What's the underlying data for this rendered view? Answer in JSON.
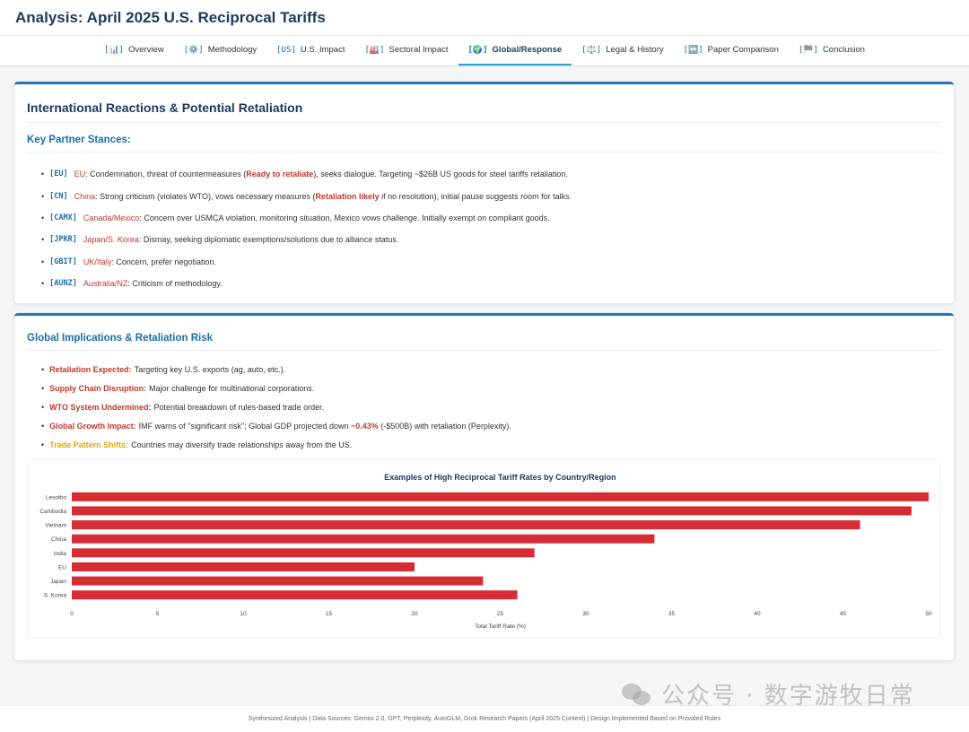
{
  "header": {
    "title": "Analysis: April 2025 U.S. Reciprocal Tariffs"
  },
  "nav": {
    "tabs": [
      {
        "label": "Overview",
        "icon": "[📊]",
        "icon_name": "bar-chart-icon",
        "active": false
      },
      {
        "label": "Methodology",
        "icon": "[⚙️]",
        "icon_name": "gear-icon",
        "active": false
      },
      {
        "label": "U.S. Impact",
        "icon": "[US]",
        "icon_name": "us-icon",
        "active": false
      },
      {
        "label": "Sectoral Impact",
        "icon": "[🏭]",
        "icon_name": "factory-icon",
        "active": false
      },
      {
        "label": "Global/Response",
        "icon": "[🌍]",
        "icon_name": "globe-icon",
        "active": true
      },
      {
        "label": "Legal & History",
        "icon": "[⚖️]",
        "icon_name": "scales-icon",
        "active": false
      },
      {
        "label": "Paper Comparison",
        "icon": "[↔️]",
        "icon_name": "compare-arrows-icon",
        "active": false
      },
      {
        "label": "Conclusion",
        "icon": "[🏁]",
        "icon_name": "checkered-flag-icon",
        "active": false
      }
    ]
  },
  "reactions": {
    "title": "International Reactions & Potential Retaliation",
    "subtitle": "Key Partner Stances:",
    "items": [
      {
        "code": "[EU]",
        "name": "EU",
        "text_before": ": Condemnation, threat of countermeasures (",
        "highlight": "Ready to retaliate",
        "text_after": "), seeks dialogue. Targeting ~$26B US goods for steel tariffs retaliation."
      },
      {
        "code": "[CN]",
        "name": "China",
        "text_before": ": Strong criticism (violates WTO), vows necessary measures (",
        "highlight": "Retaliation likely",
        "text_after": " if no resolution), initial pause suggests room for talks."
      },
      {
        "code": "[CAMX]",
        "name": "Canada/Mexico",
        "text_before": ": Concern over USMCA violation, monitoring situation, Mexico vows challenge. Initially exempt on compliant goods.",
        "highlight": "",
        "text_after": ""
      },
      {
        "code": "[JPKR]",
        "name": "Japan/S. Korea",
        "text_before": ": Dismay, seeking diplomatic exemptions/solutions due to alliance status.",
        "highlight": "",
        "text_after": ""
      },
      {
        "code": "[GBIT]",
        "name": "UK/Italy",
        "text_before": ": Concern, prefer negotiation.",
        "highlight": "",
        "text_after": ""
      },
      {
        "code": "[AUNZ]",
        "name": "Australia/NZ",
        "text_before": ": Criticism of methodology.",
        "highlight": "",
        "text_after": ""
      }
    ]
  },
  "implications": {
    "title": "Global Implications & Retaliation Risk",
    "items": [
      {
        "label": "Retaliation Expected:",
        "text": "Targeting key U.S. exports (ag, auto, etc.).",
        "color": "#c0392b",
        "extra_highlight": "",
        "extra_text": ""
      },
      {
        "label": "Supply Chain Disruption:",
        "text": "Major challenge for multinational corporations.",
        "color": "#c0392b",
        "extra_highlight": "",
        "extra_text": ""
      },
      {
        "label": "WTO System Undermined:",
        "text": "Potential breakdown of rules-based trade order.",
        "color": "#c0392b",
        "extra_highlight": "",
        "extra_text": ""
      },
      {
        "label": "Global Growth Impact:",
        "text": "IMF warns of \"significant risk\"; Global GDP projected down ",
        "color": "#c0392b",
        "extra_highlight": "~0.43%",
        "extra_text": " (-$500B) with retaliation (Perplexity)."
      },
      {
        "label": "Trade Pattern Shifts:",
        "text": "Countries may diversify trade relationships away from the US.",
        "color": "#e0a800",
        "extra_highlight": "",
        "extra_text": ""
      }
    ]
  },
  "chart_data": {
    "type": "bar",
    "orientation": "horizontal",
    "title": "Examples of High Reciprocal Tariff Rates by Country/Region",
    "xlabel": "Total Tariff Rate (%)",
    "ylabel": "",
    "categories": [
      "Lesotho",
      "Cambodia",
      "Vietnam",
      "China",
      "India",
      "EU",
      "Japan",
      "S. Korea"
    ],
    "values": [
      50,
      49,
      46,
      34,
      27,
      20,
      24,
      26
    ],
    "xlim": [
      0,
      50
    ],
    "xticks": [
      0,
      5,
      10,
      15,
      20,
      25,
      30,
      35,
      40,
      45,
      50
    ],
    "bar_color": "#d62d35",
    "grid": false
  },
  "footer": {
    "text": "Synthesized Analysis | Data Sources: Gemini 2.0, GPT, Perplexity, AutoGLM, Grok Research Papers (April 2025 Context) | Design Implemented Based on Provided Rules"
  },
  "watermark": {
    "text": "公众号 · 数字游牧日常"
  },
  "colors": {
    "accent": "#1f77b4",
    "title": "#1b3a5c",
    "link": "#1a6fa8",
    "alert": "#c0392b",
    "warning": "#e0a800"
  }
}
